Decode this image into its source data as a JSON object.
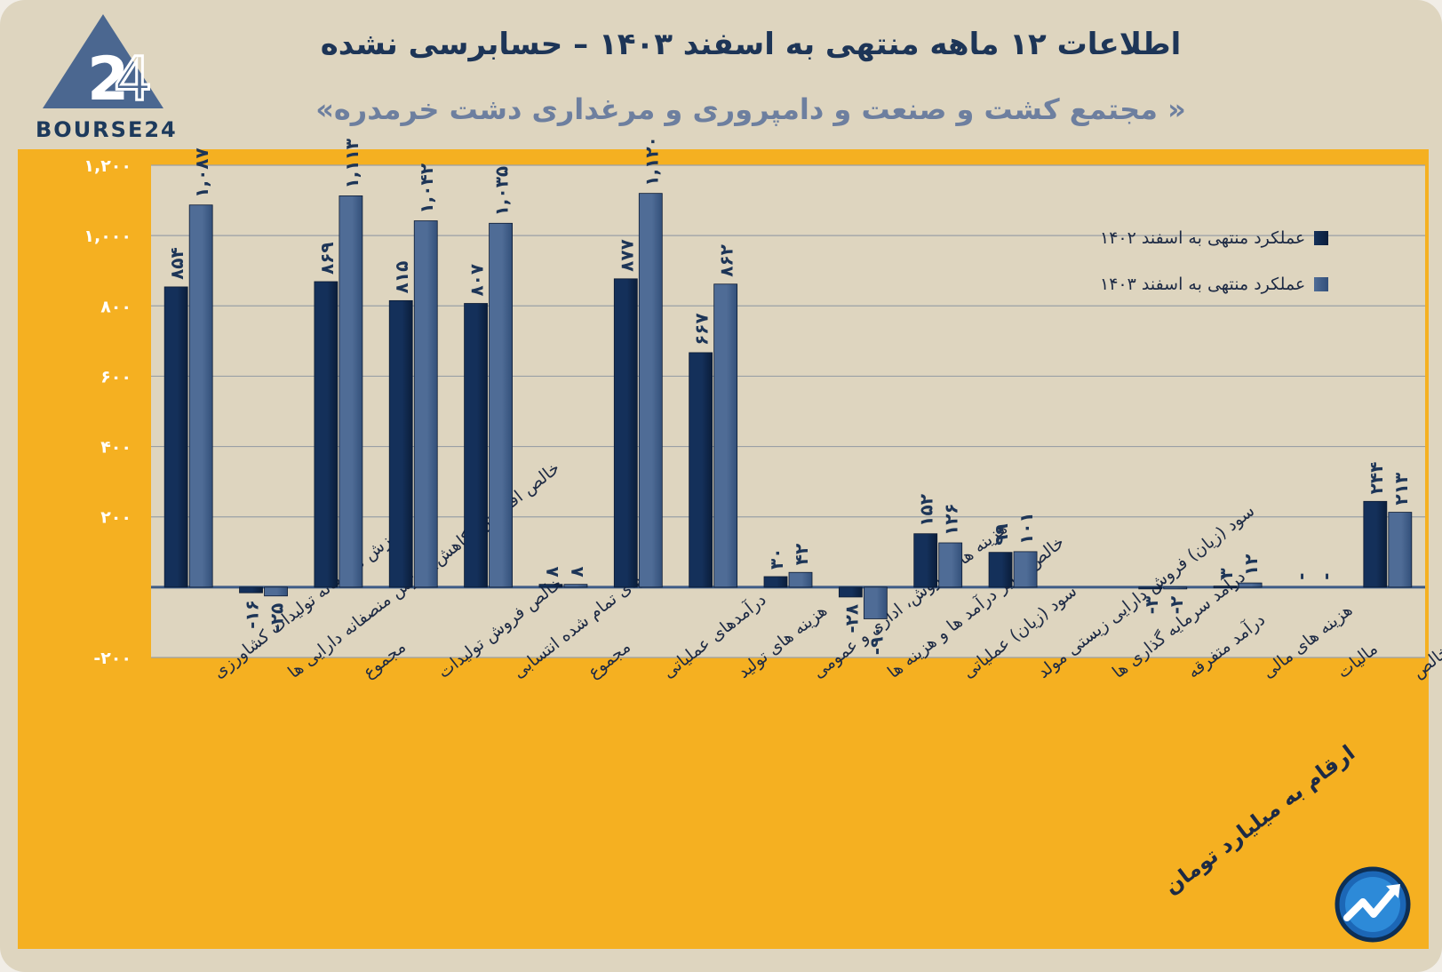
{
  "header": {
    "title": "اطلاعات ۱۲ ماهه منتهی به اسفند ۱۴۰۳ – حسابرسی نشده",
    "subtitle": "« مجتمع کشت و صنعت و دامپروری و مرغداری دشت خرمدره»",
    "logo_text": "BOURSE24"
  },
  "note": "ارقام به میلیارد تومان",
  "colors": {
    "series_1402": "#14305a",
    "series_1403": "#4f6c96",
    "panel": "#f5b021",
    "plot_bg": "#ded5bf"
  },
  "chart_data": {
    "type": "bar",
    "title": "اطلاعات ۱۲ ماهه منتهی به اسفند ۱۴۰۳ – حسابرسی نشده",
    "ylim": [
      -200,
      1200
    ],
    "yticks": [
      {
        "value": -200,
        "label": "-۲۰۰"
      },
      {
        "value": 200,
        "label": "۲۰۰"
      },
      {
        "value": 400,
        "label": "۴۰۰"
      },
      {
        "value": 600,
        "label": "۶۰۰"
      },
      {
        "value": 800,
        "label": "۸۰۰"
      },
      {
        "value": 1000,
        "label": "۱,۰۰۰"
      },
      {
        "value": 1200,
        "label": "۱,۲۰۰"
      }
    ],
    "categories": [
      "ارزش منصفانه تولیدات کشاورزی",
      "خالص افزایش (کاهش) ارزش منصفانه دارایی ها",
      "مجموع",
      "خالص فروش تولیدات",
      "بهای تمام شده انتسابی",
      "مجموع",
      "درآمدهای عملیاتی",
      "هزینه های تولید",
      "هزینه های فروش، اداری و عمومی",
      "خالص سایر درآمد ها و هزینه ها",
      "سود (زیان) عملیاتی",
      "سود (زیان) فروش دارایی زیستی مولد",
      "درآمد سرمایه گذاری ها",
      "درآمد متفرقه",
      "هزینه های مالی",
      "مالیات",
      "سود (زیان) خالص"
    ],
    "series": [
      {
        "name": "عملکرد منتهی به اسفند ۱۴۰۲",
        "values": [
          854,
          -16,
          869,
          815,
          807,
          8,
          877,
          667,
          30,
          -28,
          152,
          99,
          0,
          -3,
          3,
          0,
          244
        ],
        "labels": [
          "۸۵۴",
          "-۱۶",
          "۸۶۹",
          "۸۱۵",
          "۸۰۷",
          "۸",
          "۸۷۷",
          "۶۶۷",
          "۳۰",
          "-۲۸",
          "۱۵۲",
          "۹۹",
          "",
          "-۳",
          "۳",
          "-",
          "۲۴۴"
        ]
      },
      {
        "name": "عملکرد منتهی به اسفند ۱۴۰۳",
        "values": [
          1087,
          -25,
          1113,
          1042,
          1035,
          8,
          1120,
          862,
          42,
          -90,
          126,
          101,
          0,
          -2,
          12,
          0,
          213
        ],
        "labels": [
          "۱,۰۸۷",
          "-۲۵",
          "۱,۱۱۳",
          "۱,۰۴۲",
          "۱,۰۳۵",
          "۸",
          "۱,۱۲۰",
          "۸۶۲",
          "۴۲",
          "-۹۰",
          "۱۲۶",
          "۱۰۱",
          "",
          "-۲",
          "۱۲",
          "-",
          "۲۱۳"
        ]
      }
    ],
    "legend": [
      "عملکرد منتهی به اسفند ۱۴۰۲",
      "عملکرد منتهی به اسفند ۱۴۰۳"
    ]
  }
}
